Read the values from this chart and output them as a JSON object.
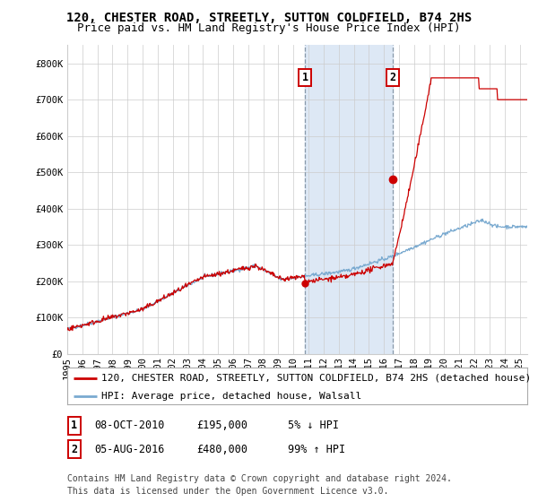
{
  "title": "120, CHESTER ROAD, STREETLY, SUTTON COLDFIELD, B74 2HS",
  "subtitle": "Price paid vs. HM Land Registry's House Price Index (HPI)",
  "legend_line1": "120, CHESTER ROAD, STREETLY, SUTTON COLDFIELD, B74 2HS (detached house)",
  "legend_line2": "HPI: Average price, detached house, Walsall",
  "footnote1": "Contains HM Land Registry data © Crown copyright and database right 2024.",
  "footnote2": "This data is licensed under the Open Government Licence v3.0.",
  "transaction1_date": "08-OCT-2010",
  "transaction1_price": "£195,000",
  "transaction1_hpi": "5% ↓ HPI",
  "transaction2_date": "05-AUG-2016",
  "transaction2_price": "£480,000",
  "transaction2_hpi": "99% ↑ HPI",
  "red_color": "#cc0000",
  "blue_color": "#7aaad0",
  "highlight_color": "#dde8f5",
  "dashed_color": "#8899aa",
  "background_color": "#ffffff",
  "grid_color": "#cccccc",
  "ylim": [
    0,
    850000
  ],
  "yticks": [
    0,
    100000,
    200000,
    300000,
    400000,
    500000,
    600000,
    700000,
    800000
  ],
  "ytick_labels": [
    "£0",
    "£100K",
    "£200K",
    "£300K",
    "£400K",
    "£500K",
    "£600K",
    "£700K",
    "£800K"
  ],
  "xstart": 1995.0,
  "xend": 2025.5,
  "xtick_years": [
    1995,
    1996,
    1997,
    1998,
    1999,
    2000,
    2001,
    2002,
    2003,
    2004,
    2005,
    2006,
    2007,
    2008,
    2009,
    2010,
    2011,
    2012,
    2013,
    2014,
    2015,
    2016,
    2017,
    2018,
    2019,
    2020,
    2021,
    2022,
    2023,
    2024,
    2025
  ],
  "transaction1_x": 2010.77,
  "transaction2_x": 2016.58,
  "transaction1_y": 195000,
  "transaction2_y": 480000,
  "title_fontsize": 10,
  "subtitle_fontsize": 9,
  "axis_fontsize": 7.5,
  "legend_fontsize": 8,
  "table_fontsize": 8.5,
  "footnote_fontsize": 7
}
